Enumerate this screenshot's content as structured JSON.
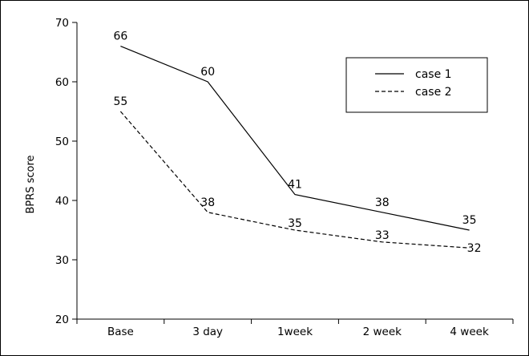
{
  "chart_data": {
    "type": "line",
    "title": "",
    "xlabel": "",
    "ylabel": "BPRS score",
    "ylim": [
      20,
      70
    ],
    "yticks": [
      20,
      30,
      40,
      50,
      60,
      70
    ],
    "categories": [
      "Base",
      "3 day",
      "1week",
      "2 week",
      "4 week"
    ],
    "series": [
      {
        "name": "case 1",
        "values": [
          66,
          60,
          41,
          38,
          35
        ],
        "style": "solid",
        "color": "#000000"
      },
      {
        "name": "case 2",
        "values": [
          55,
          38,
          35,
          33,
          32
        ],
        "style": "dashed",
        "color": "#000000"
      }
    ],
    "grid": false,
    "legend": "top-right"
  }
}
